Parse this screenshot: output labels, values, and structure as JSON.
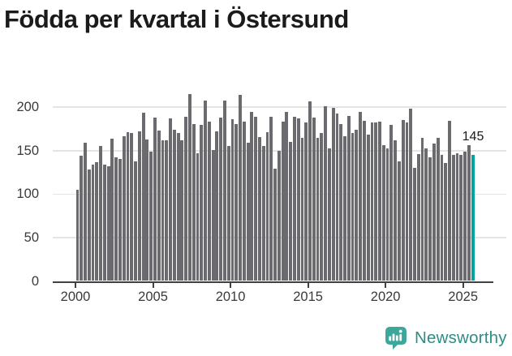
{
  "title": "Födda per kvartal i Östersund",
  "footer": {
    "brand": "Newsworthy"
  },
  "chart_data": {
    "type": "bar",
    "title": "Födda per kvartal i Östersund",
    "x_unit": "quarter",
    "categories": [
      "2000Q1",
      "2000Q2",
      "2000Q3",
      "2000Q4",
      "2001Q1",
      "2001Q2",
      "2001Q3",
      "2001Q4",
      "2002Q1",
      "2002Q2",
      "2002Q3",
      "2002Q4",
      "2003Q1",
      "2003Q2",
      "2003Q3",
      "2003Q4",
      "2004Q1",
      "2004Q2",
      "2004Q3",
      "2004Q4",
      "2005Q1",
      "2005Q2",
      "2005Q3",
      "2005Q4",
      "2006Q1",
      "2006Q2",
      "2006Q3",
      "2006Q4",
      "2007Q1",
      "2007Q2",
      "2007Q3",
      "2007Q4",
      "2008Q1",
      "2008Q2",
      "2008Q3",
      "2008Q4",
      "2009Q1",
      "2009Q2",
      "2009Q3",
      "2009Q4",
      "2010Q1",
      "2010Q2",
      "2010Q3",
      "2010Q4",
      "2011Q1",
      "2011Q2",
      "2011Q3",
      "2011Q4",
      "2012Q1",
      "2012Q2",
      "2012Q3",
      "2012Q4",
      "2013Q1",
      "2013Q2",
      "2013Q3",
      "2013Q4",
      "2014Q1",
      "2014Q2",
      "2014Q3",
      "2014Q4",
      "2015Q1",
      "2015Q2",
      "2015Q3",
      "2015Q4",
      "2016Q1",
      "2016Q2",
      "2016Q3",
      "2016Q4",
      "2017Q1",
      "2017Q2",
      "2017Q3",
      "2017Q4",
      "2018Q1",
      "2018Q2",
      "2018Q3",
      "2018Q4",
      "2019Q1",
      "2019Q2",
      "2019Q3",
      "2019Q4",
      "2020Q1",
      "2020Q2",
      "2020Q3",
      "2020Q4",
      "2021Q1",
      "2021Q2",
      "2021Q3",
      "2021Q4",
      "2022Q1",
      "2022Q2",
      "2022Q3",
      "2022Q4",
      "2023Q1",
      "2023Q2",
      "2023Q3",
      "2023Q4",
      "2024Q1",
      "2024Q2",
      "2024Q3",
      "2024Q4",
      "2025Q1",
      "2025Q2",
      "2025Q3"
    ],
    "values": [
      105,
      144,
      159,
      128,
      134,
      137,
      155,
      134,
      132,
      164,
      142,
      140,
      167,
      171,
      170,
      138,
      172,
      194,
      163,
      149,
      188,
      173,
      162,
      162,
      187,
      174,
      170,
      162,
      189,
      215,
      181,
      147,
      180,
      208,
      183,
      151,
      172,
      188,
      208,
      155,
      186,
      181,
      214,
      183,
      159,
      195,
      189,
      166,
      155,
      171,
      189,
      129,
      150,
      183,
      195,
      160,
      189,
      187,
      165,
      182,
      207,
      188,
      165,
      170,
      201,
      153,
      199,
      193,
      181,
      167,
      190,
      170,
      174,
      195,
      184,
      168,
      182,
      182,
      183,
      156,
      153,
      180,
      162,
      138,
      185,
      182,
      198,
      130,
      146,
      165,
      153,
      142,
      158,
      165,
      145,
      136,
      184,
      145,
      147,
      145,
      149,
      156,
      145
    ],
    "highlight_index": 102,
    "value_label": "145",
    "x_tick_labels": [
      "2000",
      "2005",
      "2010",
      "2015",
      "2020",
      "2025"
    ],
    "x_tick_indices": [
      0,
      20,
      40,
      60,
      80,
      100
    ],
    "y_ticks": [
      0,
      50,
      100,
      150,
      200
    ],
    "ylim": [
      0,
      220
    ],
    "grid": "horizontal",
    "legend": "none",
    "colors": {
      "bar": "#6b6b6f",
      "highlight": "#00a59d",
      "grid": "#e4e4e4",
      "axis": "#414141",
      "label_text": "#3a3a3a",
      "title_text": "#1b1b1b",
      "brand": "#2e8d87",
      "logo": "#3ca79b"
    }
  }
}
